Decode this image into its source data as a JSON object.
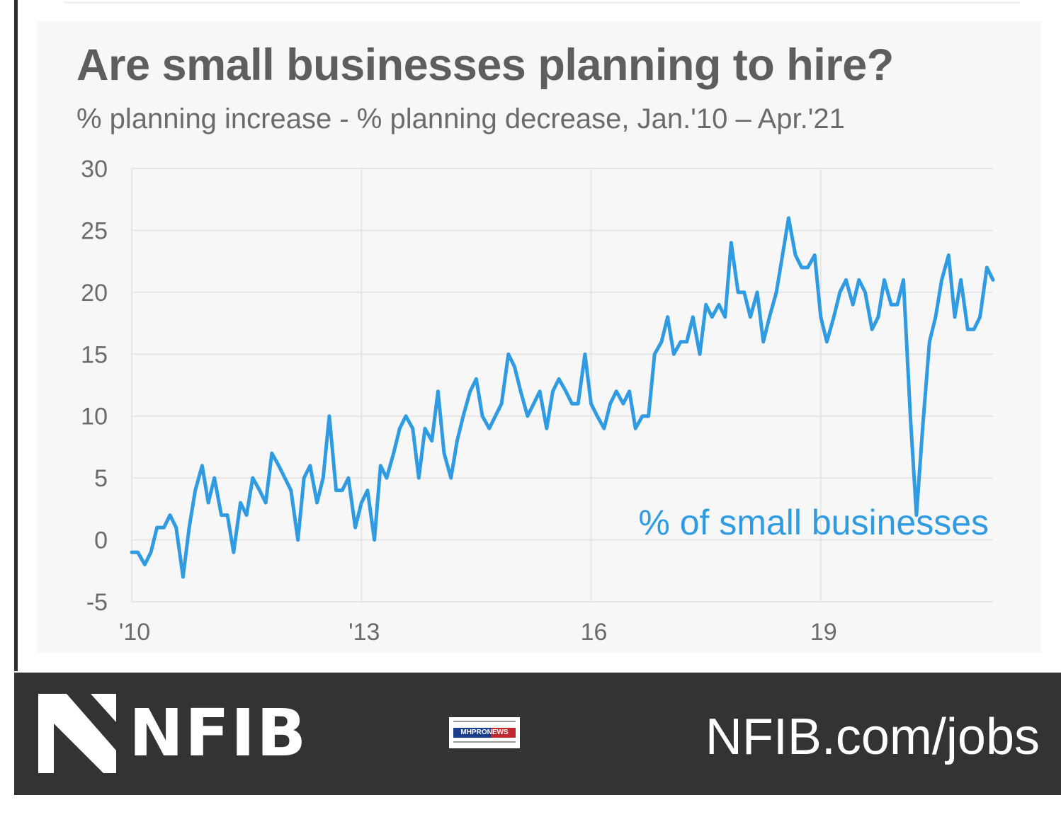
{
  "chart_data": {
    "type": "line",
    "title": "Are small businesses planning to hire?",
    "subtitle": "% planning increase - % planning decrease, Jan.'10 – Apr.'21",
    "xlabel": "",
    "ylabel": "",
    "ylim": [
      -5,
      30
    ],
    "yticks": [
      30,
      25,
      20,
      15,
      10,
      5,
      0,
      -5
    ],
    "xticks": [
      {
        "value": 2010,
        "label": "'10"
      },
      {
        "value": 2013,
        "label": "'13"
      },
      {
        "value": 2016,
        "label": "16"
      },
      {
        "value": 2019,
        "label": "19"
      }
    ],
    "grid": true,
    "color": "#2f9be2",
    "annotation": "% of small businesses",
    "series": [
      {
        "points": [
          [
            2010.0,
            -1
          ],
          [
            2010.08,
            -1
          ],
          [
            2010.17,
            -2
          ],
          [
            2010.25,
            -1
          ],
          [
            2010.33,
            1
          ],
          [
            2010.42,
            1
          ],
          [
            2010.5,
            2
          ],
          [
            2010.58,
            1
          ],
          [
            2010.67,
            -3
          ],
          [
            2010.75,
            1
          ],
          [
            2010.83,
            4
          ],
          [
            2010.92,
            6
          ],
          [
            2011.0,
            3
          ],
          [
            2011.08,
            5
          ],
          [
            2011.17,
            2
          ],
          [
            2011.25,
            2
          ],
          [
            2011.33,
            -1
          ],
          [
            2011.42,
            3
          ],
          [
            2011.5,
            2
          ],
          [
            2011.58,
            5
          ],
          [
            2011.67,
            4
          ],
          [
            2011.75,
            3
          ],
          [
            2011.83,
            7
          ],
          [
            2011.92,
            6
          ],
          [
            2012.0,
            5
          ],
          [
            2012.08,
            4
          ],
          [
            2012.17,
            0
          ],
          [
            2012.25,
            5
          ],
          [
            2012.33,
            6
          ],
          [
            2012.42,
            3
          ],
          [
            2012.5,
            5
          ],
          [
            2012.58,
            10
          ],
          [
            2012.67,
            4
          ],
          [
            2012.75,
            4
          ],
          [
            2012.83,
            5
          ],
          [
            2012.92,
            1
          ],
          [
            2013.0,
            3
          ],
          [
            2013.08,
            4
          ],
          [
            2013.17,
            0
          ],
          [
            2013.25,
            6
          ],
          [
            2013.33,
            5
          ],
          [
            2013.42,
            7
          ],
          [
            2013.5,
            9
          ],
          [
            2013.58,
            10
          ],
          [
            2013.67,
            9
          ],
          [
            2013.75,
            5
          ],
          [
            2013.83,
            9
          ],
          [
            2013.92,
            8
          ],
          [
            2014.0,
            12
          ],
          [
            2014.08,
            7
          ],
          [
            2014.17,
            5
          ],
          [
            2014.25,
            8
          ],
          [
            2014.33,
            10
          ],
          [
            2014.42,
            12
          ],
          [
            2014.5,
            13
          ],
          [
            2014.58,
            10
          ],
          [
            2014.67,
            9
          ],
          [
            2014.75,
            10
          ],
          [
            2014.83,
            11
          ],
          [
            2014.92,
            15
          ],
          [
            2015.0,
            14
          ],
          [
            2015.08,
            12
          ],
          [
            2015.17,
            10
          ],
          [
            2015.25,
            11
          ],
          [
            2015.33,
            12
          ],
          [
            2015.42,
            9
          ],
          [
            2015.5,
            12
          ],
          [
            2015.58,
            13
          ],
          [
            2015.67,
            12
          ],
          [
            2015.75,
            11
          ],
          [
            2015.83,
            11
          ],
          [
            2015.92,
            15
          ],
          [
            2016.0,
            11
          ],
          [
            2016.08,
            10
          ],
          [
            2016.17,
            9
          ],
          [
            2016.25,
            11
          ],
          [
            2016.33,
            12
          ],
          [
            2016.42,
            11
          ],
          [
            2016.5,
            12
          ],
          [
            2016.58,
            9
          ],
          [
            2016.67,
            10
          ],
          [
            2016.75,
            10
          ],
          [
            2016.83,
            15
          ],
          [
            2016.92,
            16
          ],
          [
            2017.0,
            18
          ],
          [
            2017.08,
            15
          ],
          [
            2017.17,
            16
          ],
          [
            2017.25,
            16
          ],
          [
            2017.33,
            18
          ],
          [
            2017.42,
            15
          ],
          [
            2017.5,
            19
          ],
          [
            2017.58,
            18
          ],
          [
            2017.67,
            19
          ],
          [
            2017.75,
            18
          ],
          [
            2017.83,
            24
          ],
          [
            2017.92,
            20
          ],
          [
            2018.0,
            20
          ],
          [
            2018.08,
            18
          ],
          [
            2018.17,
            20
          ],
          [
            2018.25,
            16
          ],
          [
            2018.33,
            18
          ],
          [
            2018.42,
            20
          ],
          [
            2018.5,
            23
          ],
          [
            2018.58,
            26
          ],
          [
            2018.67,
            23
          ],
          [
            2018.75,
            22
          ],
          [
            2018.83,
            22
          ],
          [
            2018.92,
            23
          ],
          [
            2019.0,
            18
          ],
          [
            2019.08,
            16
          ],
          [
            2019.17,
            18
          ],
          [
            2019.25,
            20
          ],
          [
            2019.33,
            21
          ],
          [
            2019.42,
            19
          ],
          [
            2019.5,
            21
          ],
          [
            2019.58,
            20
          ],
          [
            2019.67,
            17
          ],
          [
            2019.75,
            18
          ],
          [
            2019.83,
            21
          ],
          [
            2019.92,
            19
          ],
          [
            2020.0,
            19
          ],
          [
            2020.08,
            21
          ],
          [
            2020.17,
            10
          ],
          [
            2020.25,
            2
          ],
          [
            2020.33,
            9
          ],
          [
            2020.42,
            16
          ],
          [
            2020.5,
            18
          ],
          [
            2020.58,
            21
          ],
          [
            2020.67,
            23
          ],
          [
            2020.75,
            18
          ],
          [
            2020.83,
            21
          ],
          [
            2020.92,
            17
          ],
          [
            2021.0,
            17
          ],
          [
            2021.08,
            18
          ],
          [
            2021.17,
            22
          ],
          [
            2021.25,
            21
          ]
        ]
      }
    ]
  },
  "footer": {
    "brand": "NFIB",
    "url": "NFIB.com/jobs",
    "badge_text": "MHPRONEWS"
  }
}
